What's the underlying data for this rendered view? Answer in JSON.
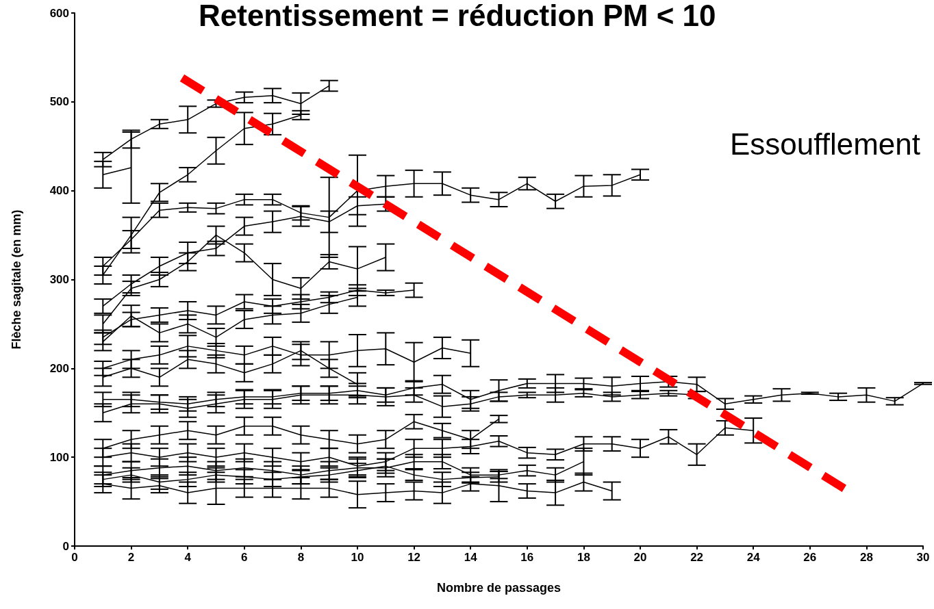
{
  "chart_data": {
    "type": "line",
    "title": "Retentissement = réduction PM < 10",
    "xlabel": "Nombre de passages",
    "ylabel": "Flèche sagitale (en mm)",
    "annotations": [
      "Essoufflement"
    ],
    "xlim": [
      0,
      30
    ],
    "xticks": [
      0,
      2,
      4,
      6,
      8,
      10,
      12,
      14,
      16,
      18,
      20,
      22,
      24,
      26,
      28,
      30
    ],
    "ylim": [
      0,
      600
    ],
    "yticks": [
      0,
      100,
      200,
      300,
      400,
      500,
      600
    ],
    "grid": false,
    "marker": "none",
    "line_style": "solid",
    "series": [
      {
        "color": "#000000",
        "x": [
          1,
          2,
          3,
          4,
          5,
          6,
          7,
          8,
          9
        ],
        "values": [
          435,
          458,
          475,
          480,
          498,
          505,
          507,
          498,
          518
        ],
        "errors": [
          8,
          10,
          5,
          15,
          4,
          6,
          8,
          12,
          6
        ]
      },
      {
        "color": "#000000",
        "x": [
          1,
          2,
          3,
          4,
          5,
          6,
          7,
          8
        ],
        "values": [
          305,
          350,
          398,
          418,
          445,
          470,
          475,
          485
        ],
        "errors": [
          10,
          20,
          10,
          8,
          15,
          18,
          12,
          5
        ]
      },
      {
        "color": "#000000",
        "x": [
          1,
          2
        ],
        "values": [
          418,
          426
        ],
        "errors": [
          15,
          40
        ]
      },
      {
        "color": "#000000",
        "x": [
          1,
          2,
          3,
          4,
          5,
          6,
          7,
          8,
          9,
          10,
          11,
          12,
          13,
          14,
          15,
          16,
          17,
          18,
          19,
          20
        ],
        "values": [
          315,
          345,
          378,
          381,
          380,
          390,
          390,
          375,
          370,
          400,
          405,
          408,
          408,
          395,
          390,
          408,
          388,
          405,
          406,
          418
        ],
        "errors": [
          10,
          10,
          8,
          5,
          6,
          6,
          6,
          8,
          45,
          40,
          12,
          15,
          13,
          8,
          8,
          7,
          8,
          12,
          12,
          6
        ]
      },
      {
        "color": "#000000",
        "x": [
          1,
          2,
          3,
          4,
          5,
          6,
          7,
          8,
          9,
          10,
          11
        ],
        "values": [
          270,
          295,
          315,
          330,
          335,
          360,
          365,
          371,
          365,
          383,
          385
        ],
        "errors": [
          8,
          10,
          10,
          12,
          8,
          10,
          12,
          11,
          12,
          10,
          8
        ]
      },
      {
        "color": "#000000",
        "x": [
          1,
          2,
          3,
          4,
          5,
          6,
          7,
          8,
          9,
          10,
          11
        ],
        "values": [
          250,
          290,
          300,
          320,
          350,
          330,
          300,
          290,
          320,
          312,
          325
        ],
        "errors": [
          10,
          8,
          8,
          10,
          10,
          10,
          18,
          12,
          8,
          25,
          15
        ]
      },
      {
        "color": "#000000",
        "x": [
          1,
          2,
          3,
          4,
          5,
          6,
          7,
          8,
          9,
          10,
          11,
          12
        ],
        "values": [
          235,
          255,
          260,
          265,
          260,
          275,
          270,
          275,
          280,
          288,
          285,
          288
        ],
        "errors": [
          8,
          8,
          8,
          10,
          10,
          8,
          8,
          8,
          6,
          6,
          3,
          8
        ]
      },
      {
        "color": "#000000",
        "x": [
          1,
          2,
          3,
          4,
          5,
          6,
          7,
          8,
          9,
          10,
          11,
          12,
          13,
          14
        ],
        "values": [
          200,
          210,
          215,
          225,
          220,
          215,
          225,
          215,
          215,
          220,
          222,
          207,
          223,
          217
        ],
        "errors": [
          8,
          10,
          10,
          12,
          8,
          10,
          10,
          12,
          15,
          18,
          18,
          22,
          12,
          15
        ]
      },
      {
        "color": "#000000",
        "x": [
          1,
          2,
          3,
          4,
          5,
          6,
          7,
          8,
          9,
          10,
          11,
          12,
          13,
          14,
          15,
          16,
          17,
          18,
          19,
          20,
          21,
          22,
          23,
          24,
          25,
          26,
          27,
          28,
          29,
          30
        ],
        "values": [
          165,
          165,
          162,
          160,
          165,
          168,
          168,
          172,
          172,
          175,
          170,
          178,
          182,
          165,
          175,
          183,
          183,
          183,
          180,
          183,
          185,
          182,
          160,
          165,
          170,
          172,
          168,
          170,
          163,
          183
        ],
        "errors": [
          8,
          8,
          8,
          8,
          8,
          8,
          8,
          8,
          8,
          8,
          8,
          8,
          10,
          10,
          12,
          5,
          10,
          6,
          10,
          8,
          6,
          8,
          6,
          4,
          7,
          1,
          4,
          8,
          4,
          1
        ]
      },
      {
        "color": "#000000",
        "x": [
          1,
          2,
          3,
          4,
          5,
          6,
          7,
          8,
          9,
          10,
          11,
          12,
          13,
          14,
          15,
          16,
          17,
          18,
          19,
          20,
          21,
          22
        ],
        "values": [
          150,
          160,
          160,
          155,
          160,
          165,
          165,
          170,
          170,
          170,
          168,
          170,
          157,
          160,
          168,
          170,
          170,
          172,
          168,
          170,
          172,
          170
        ],
        "errors": [
          10,
          10,
          10,
          10,
          10,
          10,
          10,
          10,
          10,
          10,
          10,
          8,
          12,
          8,
          5,
          3,
          8,
          4,
          5,
          4,
          3,
          4
        ]
      },
      {
        "color": "#000000",
        "x": [
          1,
          2,
          3,
          4,
          5,
          6,
          7,
          8,
          9,
          10,
          11,
          12,
          13,
          14,
          15,
          16,
          17,
          18,
          19,
          20,
          21,
          22,
          23,
          24
        ],
        "values": [
          100,
          105,
          100,
          105,
          100,
          105,
          100,
          95,
          100,
          90,
          95,
          110,
          110,
          112,
          118,
          105,
          103,
          115,
          115,
          110,
          123,
          103,
          133,
          130
        ],
        "errors": [
          10,
          10,
          10,
          10,
          10,
          10,
          10,
          10,
          10,
          10,
          10,
          10,
          10,
          8,
          6,
          6,
          6,
          8,
          8,
          10,
          8,
          12,
          8,
          14
        ]
      },
      {
        "color": "#000000",
        "x": [
          1,
          2,
          3,
          4,
          5,
          6,
          7,
          8,
          9,
          10,
          11,
          12,
          13,
          14,
          15
        ],
        "values": [
          110,
          120,
          125,
          130,
          125,
          135,
          135,
          125,
          120,
          115,
          120,
          140,
          130,
          120,
          143
        ],
        "errors": [
          10,
          10,
          10,
          10,
          10,
          10,
          10,
          10,
          10,
          10,
          10,
          8,
          8,
          10,
          4
        ]
      },
      {
        "color": "#000000",
        "x": [
          1,
          2,
          3,
          4,
          5,
          6,
          7,
          8,
          9,
          10,
          11,
          12,
          13,
          14,
          15,
          16,
          17,
          18,
          19
        ],
        "values": [
          70,
          65,
          68,
          60,
          65,
          65,
          65,
          65,
          65,
          58,
          60,
          62,
          60,
          70,
          68,
          62,
          60,
          72,
          62
        ],
        "errors": [
          10,
          12,
          8,
          12,
          18,
          10,
          10,
          12,
          10,
          15,
          10,
          10,
          12,
          8,
          18,
          8,
          14,
          10,
          10
        ]
      },
      {
        "color": "#000000",
        "x": [
          1,
          2,
          3,
          4,
          5,
          6,
          7,
          8,
          9,
          10,
          11,
          12,
          13,
          14,
          15,
          16,
          17,
          18
        ],
        "values": [
          80,
          85,
          88,
          90,
          85,
          88,
          85,
          80,
          85,
          88,
          88,
          95,
          95,
          80,
          80,
          85,
          80,
          95
        ],
        "errors": [
          10,
          10,
          10,
          10,
          10,
          10,
          10,
          10,
          10,
          10,
          10,
          8,
          8,
          8,
          4,
          6,
          8,
          15
        ]
      },
      {
        "color": "#000000",
        "x": [
          1,
          2,
          3,
          4,
          5,
          6,
          7,
          8,
          9,
          10,
          11,
          12,
          13,
          14,
          15
        ],
        "values": [
          75,
          80,
          72,
          75,
          80,
          78,
          75,
          78,
          80,
          85,
          90,
          80,
          75,
          77,
          78
        ],
        "errors": [
          8,
          8,
          8,
          8,
          8,
          8,
          8,
          8,
          8,
          8,
          8,
          6,
          8,
          6,
          6
        ]
      },
      {
        "color": "#000000",
        "x": [
          1,
          2,
          3,
          4,
          5,
          6,
          7,
          8,
          9,
          10
        ],
        "values": [
          190,
          200,
          190,
          210,
          205,
          195,
          205,
          220,
          200,
          182
        ],
        "errors": [
          10,
          10,
          10,
          10,
          10,
          10,
          10,
          10,
          10,
          13
        ]
      },
      {
        "color": "#000000",
        "x": [
          1,
          2,
          3,
          4,
          5,
          6,
          7,
          8,
          9,
          10
        ],
        "values": [
          230,
          259,
          240,
          250,
          235,
          255,
          260,
          262,
          272,
          280
        ],
        "errors": [
          10,
          12,
          10,
          10,
          10,
          10,
          10,
          10,
          10,
          10
        ]
      },
      {
        "type": "line",
        "color": "#ff0000",
        "line_style": "dashed",
        "x": [
          3.8,
          27.3
        ],
        "values": [
          527,
          63
        ]
      }
    ]
  }
}
